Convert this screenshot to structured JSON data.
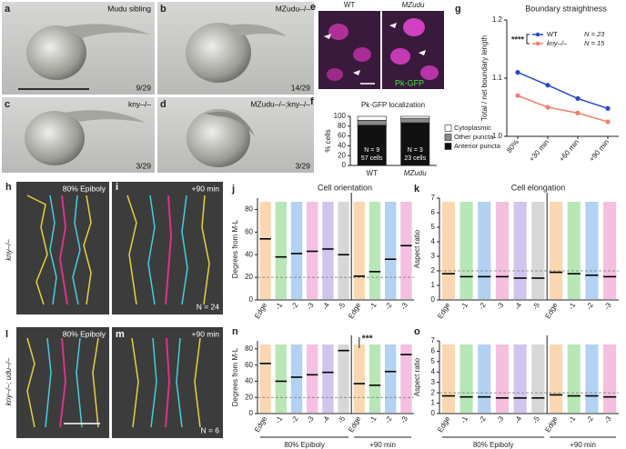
{
  "panels": [
    {
      "label": "a",
      "texts": [
        "Mudu sibling",
        "9/29"
      ]
    },
    {
      "label": "b",
      "texts": [
        "MZudu–/–",
        "14/29"
      ]
    },
    {
      "label": "c",
      "texts": [
        "kny–/–",
        "3/29"
      ]
    },
    {
      "label": "d",
      "texts": [
        "MZudu–/–;kny–/–",
        "3/29"
      ]
    },
    {
      "label": "e",
      "texts": [
        "WT",
        "MZudu",
        "Pk-GFP"
      ]
    },
    {
      "label": "h",
      "texts": [
        "80% Epiboly"
      ]
    },
    {
      "label": "i",
      "texts": [
        "+90 min",
        "N = 24"
      ]
    },
    {
      "label": "l",
      "texts": [
        "80% Epiboly"
      ]
    },
    {
      "label": "m",
      "texts": [
        "+90 min",
        "N = 6"
      ]
    }
  ],
  "row_labels": [
    "kny–/–",
    "kny–/–; udu–/–"
  ],
  "chart_data": [
    {
      "type": "bar",
      "label": "f",
      "title": "Pk-GFP localization",
      "ylabel": "% cells",
      "categories": [
        "WT",
        "MZudu"
      ],
      "ylim": [
        0,
        100
      ],
      "yticks": [
        0,
        20,
        40,
        60,
        80,
        100
      ],
      "series": [
        {
          "name": "Anterior puncta",
          "color": "#111111",
          "values": [
            82,
            87
          ]
        },
        {
          "name": "Other puncta",
          "color": "#8a8a8a",
          "values": [
            10,
            9
          ]
        },
        {
          "name": "Cytoplasmic",
          "color": "#ffffff",
          "values": [
            8,
            4
          ]
        }
      ],
      "bar_labels": [
        [
          "N = 9",
          "57 cells"
        ],
        [
          "N = 3",
          "23 cells"
        ]
      ]
    },
    {
      "type": "line",
      "label": "g",
      "title": "Boundary straightness",
      "ylabel": "Total / net boundary length",
      "categories": [
        "80%",
        "+30 min",
        "+60 min",
        "+90 min"
      ],
      "ylim": [
        1.0,
        1.2
      ],
      "yticks": [
        {
          "value": 1.0,
          "label": "1.0"
        },
        1.1,
        {
          "value": 1.2,
          "label": "1.2"
        }
      ],
      "series": [
        {
          "name": "WT",
          "color": "#2747d6",
          "values": [
            1.11,
            1.088,
            1.065,
            1.048
          ],
          "n_label": "N = 23"
        },
        {
          "name": "kny–/–",
          "color": "#f07f6c",
          "values": [
            1.07,
            1.05,
            1.04,
            1.025
          ],
          "n_label": "N = 15"
        }
      ],
      "annotation": "****"
    },
    {
      "type": "strip",
      "label": "j",
      "title": "Cell orientation",
      "ylabel": "Degrees from M-L",
      "categories": [
        "Edge",
        "-1",
        "-2",
        "-3",
        "-4",
        "-5",
        "Edge",
        "-1",
        "-2",
        "-3"
      ],
      "colors": [
        "#f39a3c",
        "#4cc24a",
        "#3f8fe0",
        "#e75fb0",
        "#8d6fd8",
        "#9a9a9a",
        "#f39a3c",
        "#4cc24a",
        "#3f8fe0",
        "#e75fb0"
      ],
      "values": [
        54,
        38,
        41,
        43,
        45,
        40,
        21,
        25,
        36,
        48
      ],
      "ylim": [
        0,
        90
      ],
      "yticks": [
        0,
        20,
        40,
        60,
        80
      ],
      "reference_line": 20
    },
    {
      "type": "strip",
      "label": "k",
      "title": "Cell elongation",
      "ylabel": "Aspect ratio",
      "categories": [
        "Edge",
        "-1",
        "-2",
        "-3",
        "-4",
        "-5",
        "Edge",
        "-1",
        "-2",
        "-3"
      ],
      "colors": [
        "#f39a3c",
        "#4cc24a",
        "#3f8fe0",
        "#e75fb0",
        "#8d6fd8",
        "#9a9a9a",
        "#f39a3c",
        "#4cc24a",
        "#3f8fe0",
        "#e75fb0"
      ],
      "values": [
        1.8,
        1.6,
        1.6,
        1.6,
        1.5,
        1.5,
        1.9,
        1.8,
        1.7,
        1.6
      ],
      "ylim": [
        0,
        7
      ],
      "yticks": [
        0,
        1,
        2,
        3,
        4,
        5,
        6,
        7
      ],
      "reference_line": 2
    },
    {
      "type": "strip",
      "label": "n",
      "ylabel": "Degrees from M-L",
      "categories": [
        "Edge",
        "-1",
        "-2",
        "-3",
        "-4",
        "-5",
        "Edge",
        "-1",
        "-2",
        "-3"
      ],
      "colors": [
        "#f39a3c",
        "#4cc24a",
        "#3f8fe0",
        "#e75fb0",
        "#8d6fd8",
        "#9a9a9a",
        "#f39a3c",
        "#4cc24a",
        "#3f8fe0",
        "#e75fb0"
      ],
      "values": [
        62,
        40,
        45,
        48,
        51,
        78,
        37,
        35,
        52,
        73
      ],
      "ylim": [
        0,
        90
      ],
      "yticks": [
        0,
        20,
        40,
        60,
        80
      ],
      "reference_line": 20,
      "annotation": "***",
      "group_labels": [
        "80% Epiboly",
        "+90 min"
      ]
    },
    {
      "type": "strip",
      "label": "o",
      "ylabel": "Aspect ratio",
      "categories": [
        "Edge",
        "-1",
        "-2",
        "-3",
        "-4",
        "-5",
        "Edge",
        "-1",
        "-2",
        "-3"
      ],
      "colors": [
        "#f39a3c",
        "#4cc24a",
        "#3f8fe0",
        "#e75fb0",
        "#8d6fd8",
        "#9a9a9a",
        "#f39a3c",
        "#4cc24a",
        "#3f8fe0",
        "#e75fb0"
      ],
      "values": [
        1.7,
        1.6,
        1.6,
        1.5,
        1.5,
        1.5,
        1.8,
        1.7,
        1.7,
        1.6
      ],
      "ylim": [
        0,
        7
      ],
      "yticks": [
        0,
        1,
        2,
        3,
        4,
        5,
        6,
        7
      ],
      "reference_line": 2,
      "group_labels": [
        "80% Epiboly",
        "+90 min"
      ]
    }
  ]
}
